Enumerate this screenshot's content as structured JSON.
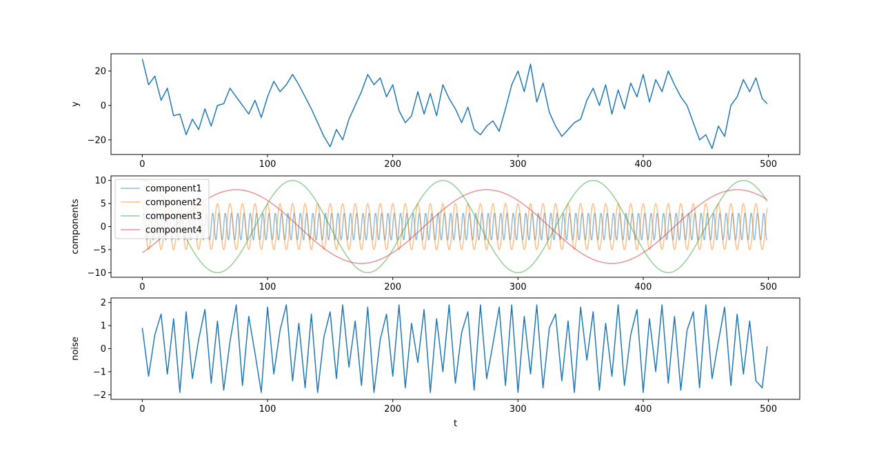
{
  "chart_data": [
    {
      "type": "line",
      "ylabel": "y",
      "xlabel": "",
      "xlim": [
        -25,
        525
      ],
      "ylim": [
        -28.5,
        30
      ],
      "xticks": [
        0,
        100,
        200,
        300,
        400,
        500
      ],
      "yticks": [
        -20,
        0,
        20
      ],
      "legend": null,
      "series": [
        {
          "color": "#1f77b4",
          "opacity": 1,
          "x": [
            0,
            5,
            10,
            15,
            20,
            25,
            30,
            35,
            40,
            45,
            50,
            55,
            60,
            65,
            70,
            75,
            80,
            85,
            90,
            95,
            100,
            105,
            110,
            115,
            120,
            125,
            130,
            135,
            140,
            145,
            150,
            155,
            160,
            165,
            170,
            175,
            180,
            185,
            190,
            195,
            200,
            205,
            210,
            215,
            220,
            225,
            230,
            235,
            240,
            245,
            250,
            255,
            260,
            265,
            270,
            275,
            280,
            285,
            290,
            295,
            300,
            305,
            310,
            315,
            320,
            325,
            330,
            335,
            340,
            345,
            350,
            355,
            360,
            365,
            370,
            375,
            380,
            385,
            390,
            395,
            400,
            405,
            410,
            415,
            420,
            425,
            430,
            435,
            440,
            445,
            450,
            455,
            460,
            465,
            470,
            475,
            480,
            485,
            490,
            495,
            499
          ],
          "y": [
            27,
            12,
            17,
            3,
            10,
            -6,
            -5,
            -17,
            -8,
            -14,
            -2,
            -12,
            0,
            1,
            10,
            5,
            0,
            -5,
            3,
            -7,
            5,
            14,
            8,
            12,
            18,
            12,
            5,
            -2,
            -10,
            -18,
            -24,
            -14,
            -20,
            -8,
            0,
            8,
            18,
            12,
            16,
            5,
            12,
            -3,
            -10,
            -6,
            8,
            -5,
            7,
            -6,
            12,
            4,
            -2,
            -10,
            -1,
            -14,
            -17,
            -12,
            -9,
            -15,
            -2,
            12,
            20,
            8,
            24,
            2,
            13,
            -4,
            -12,
            -18,
            -14,
            -10,
            -8,
            3,
            10,
            0,
            12,
            -5,
            9,
            -2,
            13,
            5,
            18,
            2,
            15,
            8,
            20,
            12,
            5,
            0,
            -10,
            -20,
            -17,
            -25,
            -12,
            -18,
            0,
            5,
            15,
            8,
            16,
            4,
            1
          ]
        }
      ]
    },
    {
      "type": "line",
      "ylabel": "components",
      "xlabel": "",
      "xlim": [
        -25,
        525
      ],
      "ylim": [
        -11,
        11
      ],
      "xticks": [
        0,
        100,
        200,
        300,
        400,
        500
      ],
      "yticks": [
        -10,
        -5,
        0,
        5,
        10
      ],
      "legend": "upper-left",
      "series": [
        {
          "name": "component1",
          "color": "#1f77b4",
          "opacity": 0.5,
          "kind": "sine",
          "amplitude": 3,
          "period": 5,
          "phase": 0
        },
        {
          "name": "component2",
          "color": "#ff7f0e",
          "opacity": 0.5,
          "kind": "sine",
          "amplitude": 5,
          "period": 10,
          "phase": 0.5
        },
        {
          "name": "component3",
          "color": "#2ca02c",
          "opacity": 0.5,
          "kind": "sine",
          "amplitude": 10,
          "period": 120,
          "phase": 0.5
        },
        {
          "name": "component4",
          "color": "#d62728",
          "opacity": 0.5,
          "kind": "sine",
          "amplitude": 8,
          "period": 200,
          "phase": -0.25
        }
      ]
    },
    {
      "type": "line",
      "ylabel": "noise",
      "xlabel": "t",
      "xlim": [
        -25,
        525
      ],
      "ylim": [
        -2.2,
        2.2
      ],
      "xticks": [
        0,
        100,
        200,
        300,
        400,
        500
      ],
      "yticks": [
        -2,
        -1,
        0,
        1,
        2
      ],
      "legend": null,
      "series": [
        {
          "color": "#1f77b4",
          "opacity": 1,
          "x": [
            0,
            5,
            10,
            15,
            20,
            25,
            30,
            35,
            40,
            45,
            50,
            55,
            60,
            65,
            70,
            75,
            80,
            85,
            90,
            95,
            100,
            105,
            110,
            115,
            120,
            125,
            130,
            135,
            140,
            145,
            150,
            155,
            160,
            165,
            170,
            175,
            180,
            185,
            190,
            195,
            200,
            205,
            210,
            215,
            220,
            225,
            230,
            235,
            240,
            245,
            250,
            255,
            260,
            265,
            270,
            275,
            280,
            285,
            290,
            295,
            300,
            305,
            310,
            315,
            320,
            325,
            330,
            335,
            340,
            345,
            350,
            355,
            360,
            365,
            370,
            375,
            380,
            385,
            390,
            395,
            400,
            405,
            410,
            415,
            420,
            425,
            430,
            435,
            440,
            445,
            450,
            455,
            460,
            465,
            470,
            475,
            480,
            485,
            490,
            495,
            499
          ],
          "y": [
            0.9,
            -1.2,
            0.6,
            1.5,
            -1.1,
            1.3,
            -1.9,
            1.6,
            -1.3,
            0.4,
            1.7,
            -1.5,
            1.2,
            -1.8,
            0.3,
            1.9,
            -1.6,
            1.4,
            -0.2,
            -1.9,
            1.8,
            -1.1,
            0.8,
            1.9,
            -1.4,
            1.1,
            -1.7,
            1.5,
            -1.9,
            0.5,
            1.6,
            -1.3,
            1.9,
            -0.8,
            1.2,
            -1.6,
            1.8,
            -1.9,
            0.4,
            1.5,
            -1.2,
            1.9,
            -1.7,
            1.1,
            -0.6,
            1.7,
            -1.9,
            1.3,
            -1.0,
            1.9,
            -1.5,
            0.7,
            1.6,
            -1.8,
            1.9,
            -1.3,
            0.2,
            1.8,
            -1.6,
            1.9,
            -1.9,
            1.4,
            -1.1,
            1.9,
            -1.7,
            0.9,
            1.5,
            -1.4,
            1.2,
            -1.9,
            1.8,
            -0.5,
            1.6,
            -1.8,
            1.1,
            -1.2,
            1.9,
            -1.6,
            0.6,
            1.7,
            -1.9,
            1.3,
            -1.0,
            1.9,
            -1.5,
            1.4,
            -1.8,
            0.8,
            1.6,
            -1.7,
            1.9,
            -1.3,
            0.3,
            1.8,
            -1.6,
            1.5,
            -1.1,
            1.2,
            -1.4,
            -1.7,
            0.1
          ]
        }
      ]
    }
  ]
}
